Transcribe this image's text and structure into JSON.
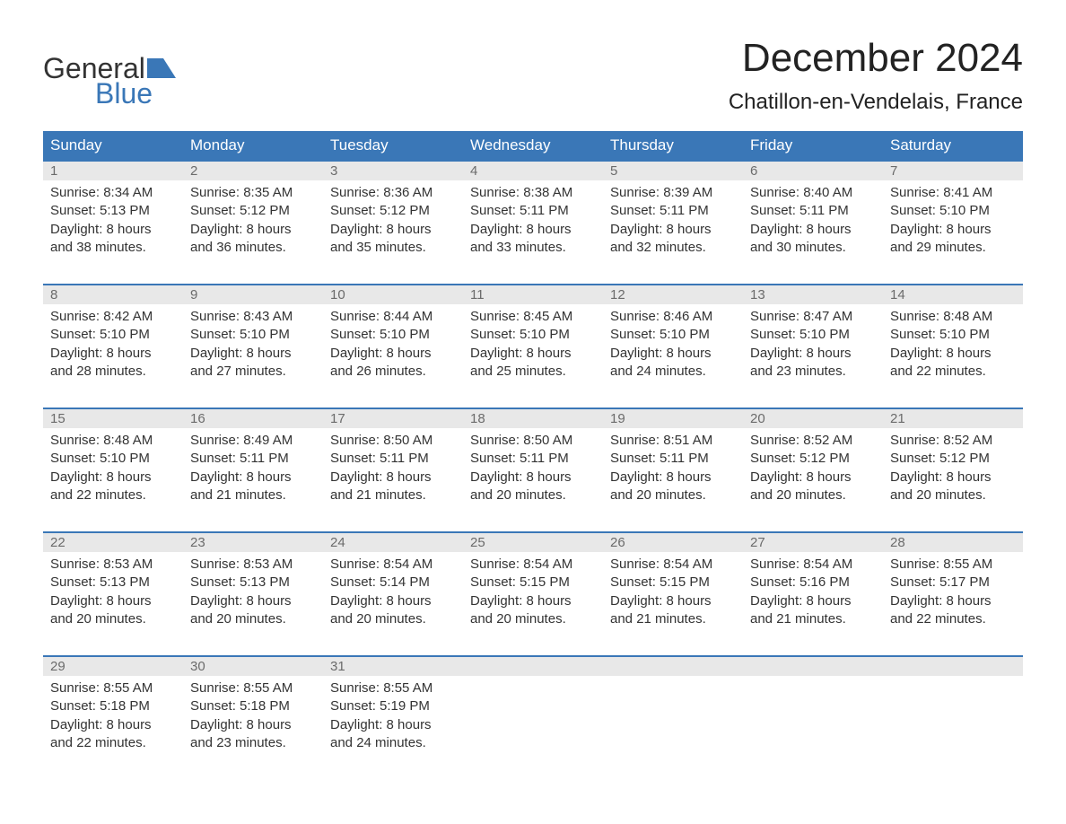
{
  "logo": {
    "word1": "General",
    "word2": "Blue",
    "accent_color": "#3a77b7"
  },
  "title": "December 2024",
  "location": "Chatillon-en-Vendelais, France",
  "colors": {
    "header_bg": "#3a77b7",
    "header_text": "#ffffff",
    "daynum_bg": "#e8e8e8",
    "daynum_text": "#6b6b6b",
    "body_text": "#333333",
    "row_border": "#3a77b7",
    "page_bg": "#ffffff"
  },
  "typography": {
    "title_fontsize": 44,
    "location_fontsize": 24,
    "header_fontsize": 17,
    "body_fontsize": 15
  },
  "weekdays": [
    "Sunday",
    "Monday",
    "Tuesday",
    "Wednesday",
    "Thursday",
    "Friday",
    "Saturday"
  ],
  "weeks": [
    [
      {
        "num": "1",
        "sunrise": "Sunrise: 8:34 AM",
        "sunset": "Sunset: 5:13 PM",
        "dl1": "Daylight: 8 hours",
        "dl2": "and 38 minutes."
      },
      {
        "num": "2",
        "sunrise": "Sunrise: 8:35 AM",
        "sunset": "Sunset: 5:12 PM",
        "dl1": "Daylight: 8 hours",
        "dl2": "and 36 minutes."
      },
      {
        "num": "3",
        "sunrise": "Sunrise: 8:36 AM",
        "sunset": "Sunset: 5:12 PM",
        "dl1": "Daylight: 8 hours",
        "dl2": "and 35 minutes."
      },
      {
        "num": "4",
        "sunrise": "Sunrise: 8:38 AM",
        "sunset": "Sunset: 5:11 PM",
        "dl1": "Daylight: 8 hours",
        "dl2": "and 33 minutes."
      },
      {
        "num": "5",
        "sunrise": "Sunrise: 8:39 AM",
        "sunset": "Sunset: 5:11 PM",
        "dl1": "Daylight: 8 hours",
        "dl2": "and 32 minutes."
      },
      {
        "num": "6",
        "sunrise": "Sunrise: 8:40 AM",
        "sunset": "Sunset: 5:11 PM",
        "dl1": "Daylight: 8 hours",
        "dl2": "and 30 minutes."
      },
      {
        "num": "7",
        "sunrise": "Sunrise: 8:41 AM",
        "sunset": "Sunset: 5:10 PM",
        "dl1": "Daylight: 8 hours",
        "dl2": "and 29 minutes."
      }
    ],
    [
      {
        "num": "8",
        "sunrise": "Sunrise: 8:42 AM",
        "sunset": "Sunset: 5:10 PM",
        "dl1": "Daylight: 8 hours",
        "dl2": "and 28 minutes."
      },
      {
        "num": "9",
        "sunrise": "Sunrise: 8:43 AM",
        "sunset": "Sunset: 5:10 PM",
        "dl1": "Daylight: 8 hours",
        "dl2": "and 27 minutes."
      },
      {
        "num": "10",
        "sunrise": "Sunrise: 8:44 AM",
        "sunset": "Sunset: 5:10 PM",
        "dl1": "Daylight: 8 hours",
        "dl2": "and 26 minutes."
      },
      {
        "num": "11",
        "sunrise": "Sunrise: 8:45 AM",
        "sunset": "Sunset: 5:10 PM",
        "dl1": "Daylight: 8 hours",
        "dl2": "and 25 minutes."
      },
      {
        "num": "12",
        "sunrise": "Sunrise: 8:46 AM",
        "sunset": "Sunset: 5:10 PM",
        "dl1": "Daylight: 8 hours",
        "dl2": "and 24 minutes."
      },
      {
        "num": "13",
        "sunrise": "Sunrise: 8:47 AM",
        "sunset": "Sunset: 5:10 PM",
        "dl1": "Daylight: 8 hours",
        "dl2": "and 23 minutes."
      },
      {
        "num": "14",
        "sunrise": "Sunrise: 8:48 AM",
        "sunset": "Sunset: 5:10 PM",
        "dl1": "Daylight: 8 hours",
        "dl2": "and 22 minutes."
      }
    ],
    [
      {
        "num": "15",
        "sunrise": "Sunrise: 8:48 AM",
        "sunset": "Sunset: 5:10 PM",
        "dl1": "Daylight: 8 hours",
        "dl2": "and 22 minutes."
      },
      {
        "num": "16",
        "sunrise": "Sunrise: 8:49 AM",
        "sunset": "Sunset: 5:11 PM",
        "dl1": "Daylight: 8 hours",
        "dl2": "and 21 minutes."
      },
      {
        "num": "17",
        "sunrise": "Sunrise: 8:50 AM",
        "sunset": "Sunset: 5:11 PM",
        "dl1": "Daylight: 8 hours",
        "dl2": "and 21 minutes."
      },
      {
        "num": "18",
        "sunrise": "Sunrise: 8:50 AM",
        "sunset": "Sunset: 5:11 PM",
        "dl1": "Daylight: 8 hours",
        "dl2": "and 20 minutes."
      },
      {
        "num": "19",
        "sunrise": "Sunrise: 8:51 AM",
        "sunset": "Sunset: 5:11 PM",
        "dl1": "Daylight: 8 hours",
        "dl2": "and 20 minutes."
      },
      {
        "num": "20",
        "sunrise": "Sunrise: 8:52 AM",
        "sunset": "Sunset: 5:12 PM",
        "dl1": "Daylight: 8 hours",
        "dl2": "and 20 minutes."
      },
      {
        "num": "21",
        "sunrise": "Sunrise: 8:52 AM",
        "sunset": "Sunset: 5:12 PM",
        "dl1": "Daylight: 8 hours",
        "dl2": "and 20 minutes."
      }
    ],
    [
      {
        "num": "22",
        "sunrise": "Sunrise: 8:53 AM",
        "sunset": "Sunset: 5:13 PM",
        "dl1": "Daylight: 8 hours",
        "dl2": "and 20 minutes."
      },
      {
        "num": "23",
        "sunrise": "Sunrise: 8:53 AM",
        "sunset": "Sunset: 5:13 PM",
        "dl1": "Daylight: 8 hours",
        "dl2": "and 20 minutes."
      },
      {
        "num": "24",
        "sunrise": "Sunrise: 8:54 AM",
        "sunset": "Sunset: 5:14 PM",
        "dl1": "Daylight: 8 hours",
        "dl2": "and 20 minutes."
      },
      {
        "num": "25",
        "sunrise": "Sunrise: 8:54 AM",
        "sunset": "Sunset: 5:15 PM",
        "dl1": "Daylight: 8 hours",
        "dl2": "and 20 minutes."
      },
      {
        "num": "26",
        "sunrise": "Sunrise: 8:54 AM",
        "sunset": "Sunset: 5:15 PM",
        "dl1": "Daylight: 8 hours",
        "dl2": "and 21 minutes."
      },
      {
        "num": "27",
        "sunrise": "Sunrise: 8:54 AM",
        "sunset": "Sunset: 5:16 PM",
        "dl1": "Daylight: 8 hours",
        "dl2": "and 21 minutes."
      },
      {
        "num": "28",
        "sunrise": "Sunrise: 8:55 AM",
        "sunset": "Sunset: 5:17 PM",
        "dl1": "Daylight: 8 hours",
        "dl2": "and 22 minutes."
      }
    ],
    [
      {
        "num": "29",
        "sunrise": "Sunrise: 8:55 AM",
        "sunset": "Sunset: 5:18 PM",
        "dl1": "Daylight: 8 hours",
        "dl2": "and 22 minutes."
      },
      {
        "num": "30",
        "sunrise": "Sunrise: 8:55 AM",
        "sunset": "Sunset: 5:18 PM",
        "dl1": "Daylight: 8 hours",
        "dl2": "and 23 minutes."
      },
      {
        "num": "31",
        "sunrise": "Sunrise: 8:55 AM",
        "sunset": "Sunset: 5:19 PM",
        "dl1": "Daylight: 8 hours",
        "dl2": "and 24 minutes."
      },
      {
        "empty": true
      },
      {
        "empty": true
      },
      {
        "empty": true
      },
      {
        "empty": true
      }
    ]
  ]
}
